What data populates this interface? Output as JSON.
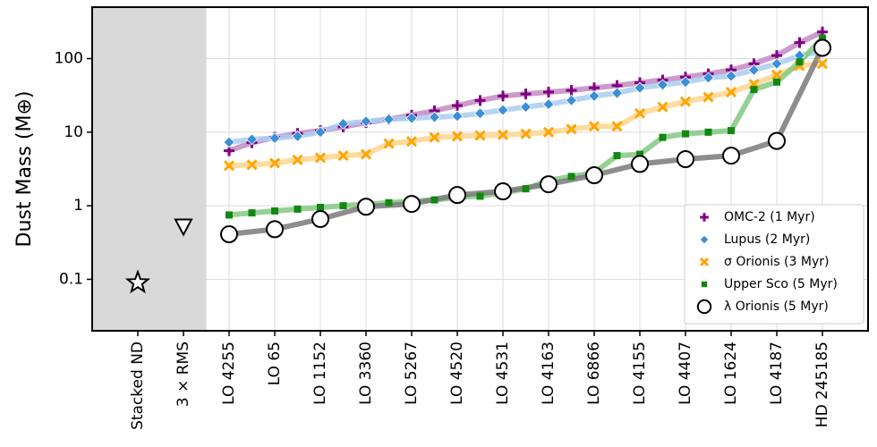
{
  "chart_data": {
    "type": "scatter",
    "y_label": "Dust Mass (M⊕)",
    "y_log": true,
    "grid": true,
    "legend": "lower right",
    "categories": [
      "Stacked ND",
      "3 × RMS",
      "LO 4255",
      "LO 65",
      "LO 1152",
      "LO 3360",
      "LO 5267",
      "LO 4520",
      "LO 4531",
      "LO 4163",
      "LO 6866",
      "LO 4155",
      "LO 4407",
      "LO 1624",
      "LO 4187",
      "HD 245185"
    ],
    "xlim": [
      -1,
      16
    ],
    "shade_xlim": [
      -1,
      1.5
    ],
    "ylim": [
      0.02,
      500
    ],
    "yticks": [
      0.1,
      1,
      10,
      100
    ],
    "series": [
      {
        "name": "OMC-2 (1 Myr)",
        "color": "#800080",
        "line_color": "#c38ac3",
        "marker": "plus",
        "x": [
          2,
          2.5,
          3,
          3.5,
          4,
          4.5,
          5,
          5.5,
          6,
          6.5,
          7,
          7.5,
          8,
          8.5,
          9,
          9.5,
          10,
          10.5,
          11,
          11.5,
          12,
          12.5,
          13,
          13.5,
          14,
          14.5,
          15
        ],
        "values": [
          5.6,
          7.2,
          8.5,
          9.6,
          10.5,
          11.8,
          13.5,
          15,
          17,
          19.5,
          23,
          27,
          31,
          33,
          35,
          37,
          40,
          43,
          47,
          51,
          56,
          62,
          70,
          85,
          110,
          165,
          230
        ]
      },
      {
        "name": "Lupus (2 Myr)",
        "color": "#3a8fd8",
        "line_color": "#a9cdee",
        "marker": "diamond",
        "x": [
          2,
          2.5,
          3,
          3.5,
          4,
          4.5,
          5,
          5.5,
          6,
          6.5,
          7,
          7.5,
          8,
          8.5,
          9,
          9.5,
          10,
          10.5,
          11,
          11.5,
          12,
          12.5,
          13,
          13.5,
          14,
          14.5,
          15
        ],
        "values": [
          7.3,
          8,
          8.3,
          8.8,
          10,
          13,
          14,
          15,
          15.5,
          16,
          16.5,
          18,
          20,
          22,
          24,
          27,
          31,
          34,
          40,
          44,
          48,
          55,
          58,
          70,
          85,
          110,
          125
        ]
      },
      {
        "name": "σ Orionis (3 Myr)",
        "color": "#ffa500",
        "line_color": "#ffd58c",
        "marker": "x",
        "x": [
          2,
          2.5,
          3,
          3.5,
          4,
          4.5,
          5,
          5.5,
          6,
          6.5,
          7,
          7.5,
          8,
          8.5,
          9,
          9.5,
          10,
          10.5,
          11,
          11.5,
          12,
          12.5,
          13,
          13.5,
          14,
          14.5,
          15
        ],
        "values": [
          3.5,
          3.6,
          3.8,
          4.2,
          4.5,
          4.8,
          5,
          7,
          7.5,
          8.5,
          8.8,
          9,
          9.2,
          9.5,
          10,
          11,
          12,
          12,
          18,
          22,
          26,
          30,
          35,
          45,
          60,
          80,
          85
        ]
      },
      {
        "name": "Upper Sco (5 Myr)",
        "color": "#118811",
        "line_color": "#84c884",
        "marker": "square",
        "x": [
          2,
          2.5,
          3,
          3.5,
          4,
          4.5,
          5,
          5.5,
          6,
          6.5,
          7,
          7.5,
          8,
          8.5,
          9,
          9.5,
          10,
          10.5,
          11,
          11.5,
          12,
          12.5,
          13,
          13.5,
          14,
          14.5,
          15
        ],
        "values": [
          0.75,
          0.8,
          0.85,
          0.9,
          0.95,
          1.0,
          1.05,
          1.1,
          1.15,
          1.2,
          1.3,
          1.35,
          1.5,
          1.7,
          2.2,
          2.5,
          2.8,
          4.8,
          5.0,
          8.5,
          9.5,
          10,
          10.5,
          38,
          48,
          90,
          190
        ]
      },
      {
        "name": "λ Orionis (5 Myr)",
        "color": "#ffffff",
        "line_color": "#7a7a7a",
        "marker": "circle",
        "values": [
          null,
          null,
          0.41,
          0.48,
          0.66,
          0.97,
          1.06,
          1.4,
          1.57,
          1.96,
          2.6,
          3.7,
          4.3,
          4.8,
          7.6,
          140
        ]
      },
      {
        "color": "#ffffff",
        "marker": "star",
        "values": [
          0.09,
          null,
          null,
          null,
          null,
          null,
          null,
          null,
          null,
          null,
          null,
          null,
          null,
          null,
          null,
          null
        ]
      },
      {
        "color": "#ffffff",
        "marker": "triangle",
        "values": [
          null,
          0.52,
          null,
          null,
          null,
          null,
          null,
          null,
          null,
          null,
          null,
          null,
          null,
          null,
          null,
          null
        ]
      }
    ]
  }
}
